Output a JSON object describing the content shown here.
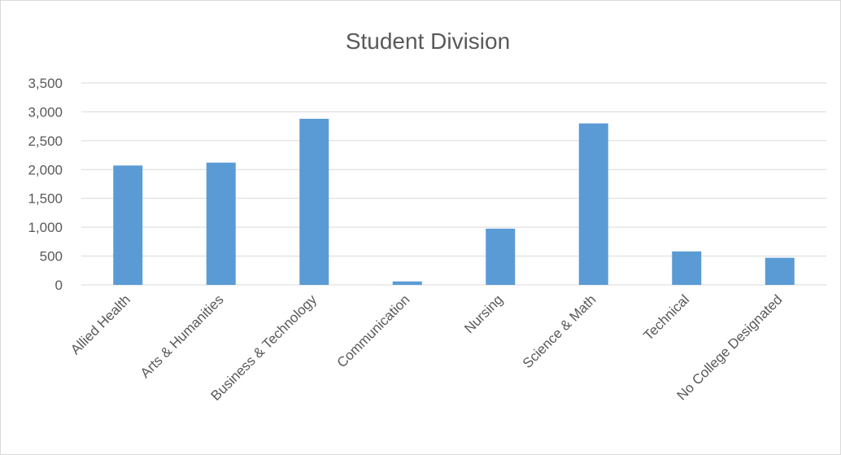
{
  "chart_data": {
    "type": "bar",
    "title": "Student Division",
    "xlabel": "",
    "ylabel": "",
    "categories": [
      "Allied Health",
      "Arts & Humanities",
      "Business & Technology",
      "Communication",
      "Nursing",
      "Science & Math",
      "Technical",
      "No College Designated"
    ],
    "values": [
      2070,
      2120,
      2880,
      60,
      975,
      2800,
      580,
      470
    ],
    "ylim": [
      0,
      3500
    ],
    "yticks": [
      0,
      500,
      1000,
      1500,
      2000,
      2500,
      3000,
      3500
    ],
    "ytick_labels": [
      "0",
      "500",
      "1,000",
      "1,500",
      "2,000",
      "2,500",
      "3,000",
      "3,500"
    ],
    "grid": true,
    "legend": "none",
    "colors": {
      "bar": "#5b9bd5",
      "grid": "#d9d9d9",
      "text": "#595959",
      "border": "#d9d9d9"
    }
  }
}
